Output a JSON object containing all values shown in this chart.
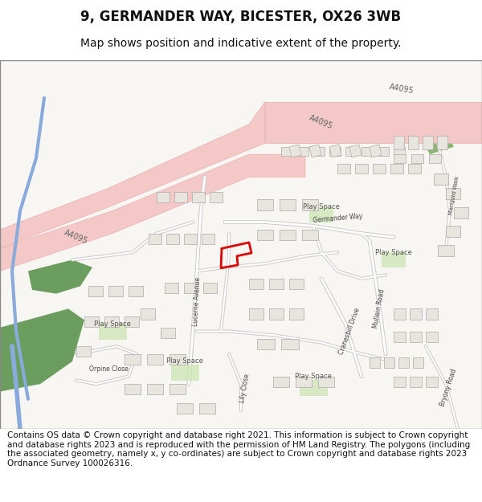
{
  "title": "9, GERMANDER WAY, BICESTER, OX26 3WB",
  "subtitle": "Map shows position and indicative extent of the property.",
  "footer": "Contains OS data © Crown copyright and database right 2021. This information is subject to Crown copyright and database rights 2023 and is reproduced with the permission of HM Land Registry. The polygons (including the associated geometry, namely x, y co-ordinates) are subject to Crown copyright and database rights 2023 Ordnance Survey 100026316.",
  "map_bg": "#f5f3ef",
  "road_color": "#f5c8c8",
  "road_outline": "#e8a0a0",
  "road_center_color": "#f0b0b0",
  "building_fill": "#e8e4de",
  "building_outline": "#c8c4be",
  "green_fill": "#b8d4a0",
  "water_fill": "#a8c8e8",
  "water_color": "#88aacc",
  "property_color": "#dd0000",
  "label_color": "#333333",
  "title_fontsize": 12,
  "subtitle_fontsize": 10,
  "footer_fontsize": 7.5
}
